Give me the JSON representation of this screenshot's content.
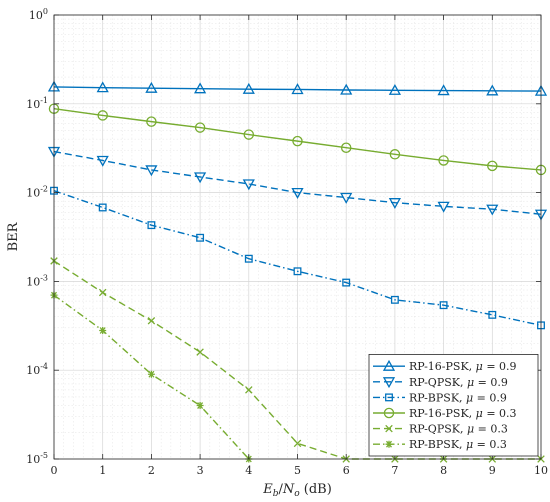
{
  "chart_data": {
    "type": "line",
    "xlabel": "E_b/N_o (dB)",
    "ylabel": "BER",
    "x_scale": "linear",
    "y_scale": "log",
    "xlim": [
      0,
      10
    ],
    "ylim": [
      1e-05,
      1
    ],
    "x_ticks": [
      0,
      1,
      2,
      3,
      4,
      5,
      6,
      7,
      8,
      9,
      10
    ],
    "y_ticks": [
      {
        "value": 1,
        "mantissa": "10",
        "exp": "0"
      },
      {
        "value": 0.1,
        "mantissa": "10",
        "exp": "-1"
      },
      {
        "value": 0.01,
        "mantissa": "10",
        "exp": "-2"
      },
      {
        "value": 0.001,
        "mantissa": "10",
        "exp": "-3"
      },
      {
        "value": 0.0001,
        "mantissa": "10",
        "exp": "-4"
      },
      {
        "value": 1e-05,
        "mantissa": "10",
        "exp": "-5"
      }
    ],
    "grid": true,
    "minor_grid": true,
    "legend_position": "bottom-right",
    "mu_symbol": "μ",
    "series": [
      {
        "name": "RP-16-PSK, μ = 0.9",
        "label_main": "RP-16-PSK,",
        "mu_value": "0.9",
        "color": "#0072BD",
        "dash": "solid",
        "marker": "triangle-up",
        "x": [
          0,
          1,
          2,
          3,
          4,
          5,
          6,
          7,
          8,
          9,
          10
        ],
        "y": [
          0.155,
          0.152,
          0.15,
          0.148,
          0.146,
          0.145,
          0.143,
          0.142,
          0.141,
          0.14,
          0.139
        ]
      },
      {
        "name": "RP-QPSK, μ = 0.9",
        "label_main": "RP-QPSK,",
        "mu_value": "0.9",
        "color": "#0072BD",
        "dash": "dashed",
        "marker": "triangle-down",
        "x": [
          0,
          1,
          2,
          3,
          4,
          5,
          6,
          7,
          8,
          9,
          10
        ],
        "y": [
          0.029,
          0.023,
          0.018,
          0.015,
          0.0125,
          0.01,
          0.0088,
          0.0077,
          0.007,
          0.0065,
          0.0057
        ]
      },
      {
        "name": "RP-BPSK, μ = 0.9",
        "label_main": "RP-BPSK,",
        "mu_value": "0.9",
        "color": "#0072BD",
        "dash": "dashdot",
        "marker": "square",
        "x": [
          0,
          1,
          2,
          3,
          4,
          5,
          6,
          7,
          8,
          9,
          10
        ],
        "y": [
          0.0105,
          0.0068,
          0.0043,
          0.0031,
          0.0018,
          0.0013,
          0.00097,
          0.00062,
          0.00054,
          0.00042,
          0.00032
        ]
      },
      {
        "name": "RP-16-PSK, μ = 0.3",
        "label_main": "RP-16-PSK,",
        "mu_value": "0.3",
        "color": "#77AC30",
        "dash": "solid",
        "marker": "circle",
        "x": [
          0,
          1,
          2,
          3,
          4,
          5,
          6,
          7,
          8,
          9,
          10
        ],
        "y": [
          0.088,
          0.074,
          0.063,
          0.054,
          0.045,
          0.038,
          0.032,
          0.027,
          0.023,
          0.02,
          0.018
        ]
      },
      {
        "name": "RP-QPSK, μ = 0.3",
        "label_main": "RP-QPSK,",
        "mu_value": "0.3",
        "color": "#77AC30",
        "dash": "dashed",
        "marker": "x",
        "x": [
          0,
          1,
          2,
          3,
          4,
          5,
          6,
          7,
          8,
          9,
          10
        ],
        "y": [
          0.0017,
          0.00075,
          0.00036,
          0.00016,
          6e-05,
          1.5e-05,
          1e-05,
          1e-05,
          1e-05,
          1e-05,
          1e-05
        ]
      },
      {
        "name": "RP-BPSK, μ = 0.3",
        "label_main": "RP-BPSK,",
        "mu_value": "0.3",
        "color": "#77AC30",
        "dash": "dashdot",
        "marker": "asterisk",
        "x": [
          0,
          1,
          2,
          3,
          4
        ],
        "y": [
          0.0007,
          0.00028,
          9e-05,
          4e-05,
          1e-05
        ]
      }
    ]
  }
}
